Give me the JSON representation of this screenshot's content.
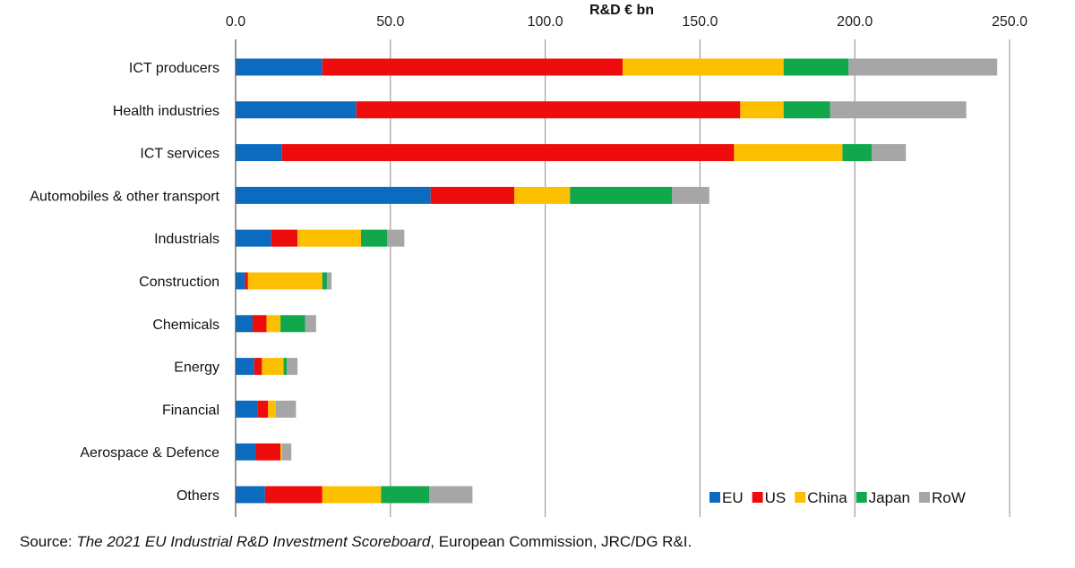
{
  "chart_data": {
    "type": "bar",
    "orientation": "horizontal",
    "stacked": true,
    "title": "R&D € bn",
    "xlim": [
      0,
      250
    ],
    "ticks": [
      0,
      50,
      100,
      150,
      200,
      250
    ],
    "tick_labels": [
      "0.0",
      "50.0",
      "100.0",
      "150.0",
      "200.0",
      "250.0"
    ],
    "grid": true,
    "legend_position": "bottom-right",
    "categories": [
      "ICT producers",
      "Health industries",
      "ICT services",
      "Automobiles & other transport",
      "Industrials",
      "Construction",
      "Chemicals",
      "Energy",
      "Financial",
      "Aerospace & Defence",
      "Others"
    ],
    "series": [
      {
        "name": "EU",
        "color": "#0a6bbf",
        "values": [
          28,
          39,
          15,
          63,
          11.5,
          3,
          5.5,
          6,
          7,
          6.5,
          9.5
        ]
      },
      {
        "name": "US",
        "color": "#ee0c0c",
        "values": [
          97,
          124,
          146,
          27,
          8.5,
          1,
          4.5,
          2.5,
          3.5,
          8,
          18.5
        ]
      },
      {
        "name": "China",
        "color": "#fcc000",
        "values": [
          52,
          14,
          35,
          18,
          20.5,
          24,
          4.5,
          7,
          2.5,
          0.5,
          19
        ]
      },
      {
        "name": "Japan",
        "color": "#11a84c",
        "values": [
          21,
          15,
          9.5,
          33,
          8.5,
          1.5,
          8,
          1,
          0,
          0,
          15.5
        ]
      },
      {
        "name": "RoW",
        "color": "#a6a6a6",
        "values": [
          48,
          44,
          11,
          12,
          5.5,
          1.5,
          3.5,
          3.5,
          6.5,
          3,
          14
        ]
      }
    ]
  },
  "source": {
    "prefix": "Source: ",
    "title": "The 2021 EU Industrial R&D Investment Scoreboard",
    "suffix": ", European Commission, JRC/DG R&I."
  }
}
